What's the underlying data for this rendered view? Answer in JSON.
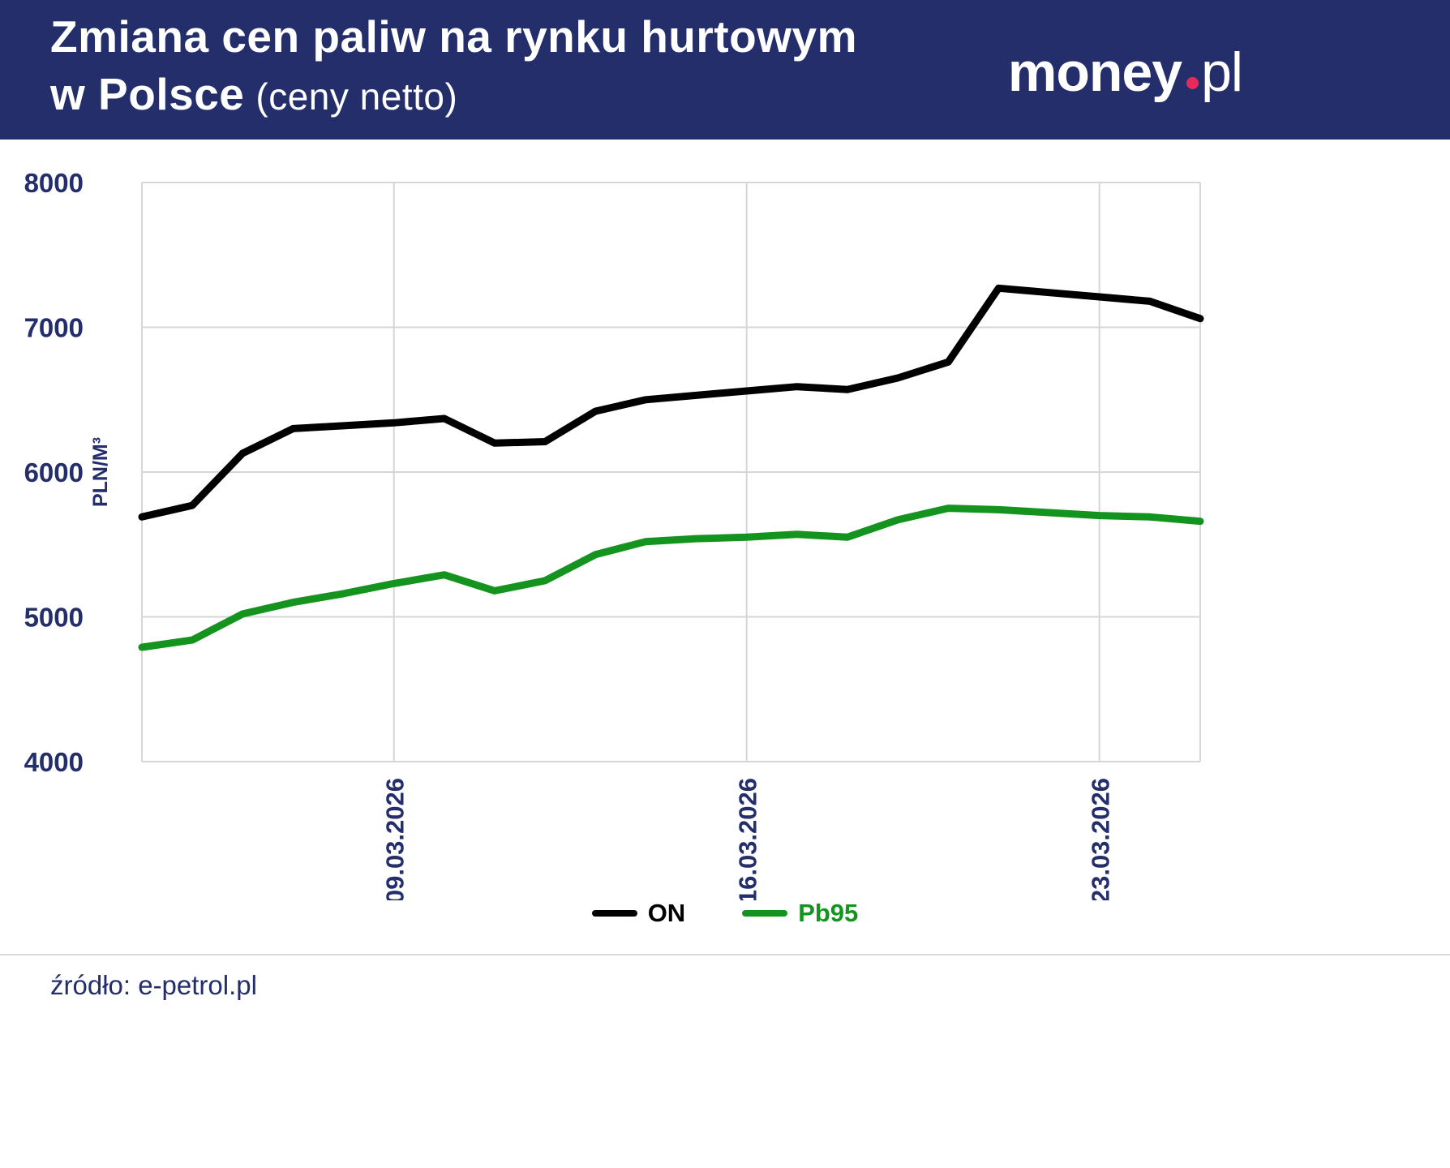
{
  "header": {
    "title_line1": "Zmiana cen paliw na rynku hurtowym",
    "title_line2_bold": "w Polsce",
    "title_line2_normal": "(ceny netto)",
    "logo": {
      "part1": "money",
      "part2": "pl",
      "dot_color": "#e62a5e"
    }
  },
  "chart_data": {
    "type": "line",
    "title": "Zmiana cen paliw na rynku hurtowym w Polsce (ceny netto)",
    "xlabel": "",
    "ylabel": "PLN/M³",
    "ylim": [
      4000,
      8000
    ],
    "yticks": [
      4000,
      5000,
      6000,
      7000,
      8000
    ],
    "grid": true,
    "legend_position": "bottom",
    "x": [
      "04.03.2026",
      "05.03.2026",
      "06.03.2026",
      "07.03.2026",
      "08.03.2026",
      "09.03.2026",
      "10.03.2026",
      "11.03.2026",
      "12.03.2026",
      "13.03.2026",
      "14.03.2026",
      "15.03.2026",
      "16.03.2026",
      "17.03.2026",
      "18.03.2026",
      "19.03.2026",
      "20.03.2026",
      "21.03.2026",
      "22.03.2026",
      "23.03.2026",
      "24.03.2026",
      "25.03.2026"
    ],
    "x_ticks": [
      {
        "label": "09.03.2026",
        "index": 5
      },
      {
        "label": "16.03.2026",
        "index": 12
      },
      {
        "label": "23.03.2026",
        "index": 19
      }
    ],
    "series": [
      {
        "name": "ON",
        "color": "#000000",
        "values": [
          5690,
          5770,
          6130,
          6300,
          6320,
          6340,
          6370,
          6200,
          6210,
          6420,
          6500,
          6530,
          6560,
          6590,
          6570,
          6650,
          6760,
          7270,
          7240,
          7210,
          7180,
          7060
        ]
      },
      {
        "name": "Pb95",
        "color": "#15931f",
        "values": [
          4790,
          4840,
          5020,
          5100,
          5160,
          5230,
          5290,
          5180,
          5250,
          5430,
          5520,
          5540,
          5550,
          5570,
          5550,
          5670,
          5750,
          5740,
          5720,
          5700,
          5690,
          5660
        ]
      }
    ]
  },
  "footer": {
    "source": "źródło: e-petrol.pl"
  }
}
